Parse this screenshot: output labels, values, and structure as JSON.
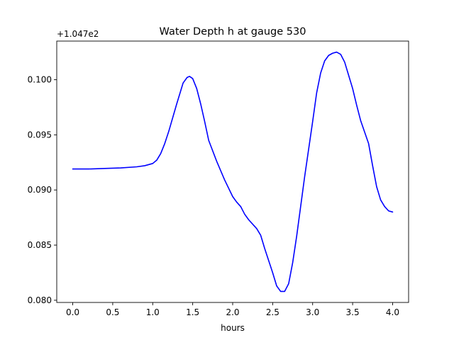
{
  "chart_data": {
    "type": "line",
    "title": "Water Depth h at gauge 530",
    "xlabel": "hours",
    "ylabel": "",
    "offset_text": "+1.047e2",
    "xlim": [
      -0.2,
      4.2
    ],
    "ylim": [
      0.0798,
      0.1035
    ],
    "x_ticks": [
      0.0,
      0.5,
      1.0,
      1.5,
      2.0,
      2.5,
      3.0,
      3.5,
      4.0
    ],
    "x_tick_labels": [
      "0.0",
      "0.5",
      "1.0",
      "1.5",
      "2.0",
      "2.5",
      "3.0",
      "3.5",
      "4.0"
    ],
    "y_ticks": [
      0.08,
      0.085,
      0.09,
      0.095,
      0.1
    ],
    "y_tick_labels": [
      "0.080",
      "0.085",
      "0.090",
      "0.095",
      "0.100"
    ],
    "grid": false,
    "legend": "none",
    "series": [
      {
        "color": "#0000ff",
        "x": [
          0.0,
          0.2,
          0.4,
          0.6,
          0.8,
          0.9,
          1.0,
          1.05,
          1.1,
          1.15,
          1.2,
          1.3,
          1.38,
          1.43,
          1.46,
          1.5,
          1.55,
          1.6,
          1.65,
          1.7,
          1.8,
          1.9,
          2.0,
          2.05,
          2.1,
          2.15,
          2.2,
          2.3,
          2.35,
          2.4,
          2.45,
          2.5,
          2.55,
          2.6,
          2.65,
          2.7,
          2.75,
          2.8,
          2.9,
          3.0,
          3.05,
          3.1,
          3.15,
          3.2,
          3.25,
          3.3,
          3.35,
          3.4,
          3.45,
          3.5,
          3.55,
          3.6,
          3.7,
          3.75,
          3.8,
          3.85,
          3.9,
          3.95,
          4.0
        ],
        "y": [
          0.0919,
          0.0919,
          0.09195,
          0.092,
          0.0921,
          0.0922,
          0.0924,
          0.0927,
          0.0933,
          0.0942,
          0.0953,
          0.0978,
          0.0997,
          0.1002,
          0.1003,
          0.1001,
          0.0992,
          0.0978,
          0.0962,
          0.0945,
          0.0926,
          0.0909,
          0.0894,
          0.0889,
          0.0885,
          0.0878,
          0.0873,
          0.0865,
          0.0859,
          0.0847,
          0.0836,
          0.0825,
          0.0813,
          0.0808,
          0.0808,
          0.0815,
          0.0834,
          0.0858,
          0.0912,
          0.0962,
          0.0988,
          0.1006,
          0.1017,
          0.1022,
          0.1024,
          0.1025,
          0.1023,
          0.1016,
          0.1004,
          0.0992,
          0.0977,
          0.0963,
          0.0942,
          0.0922,
          0.0903,
          0.0891,
          0.0885,
          0.0881,
          0.088
        ]
      }
    ]
  }
}
